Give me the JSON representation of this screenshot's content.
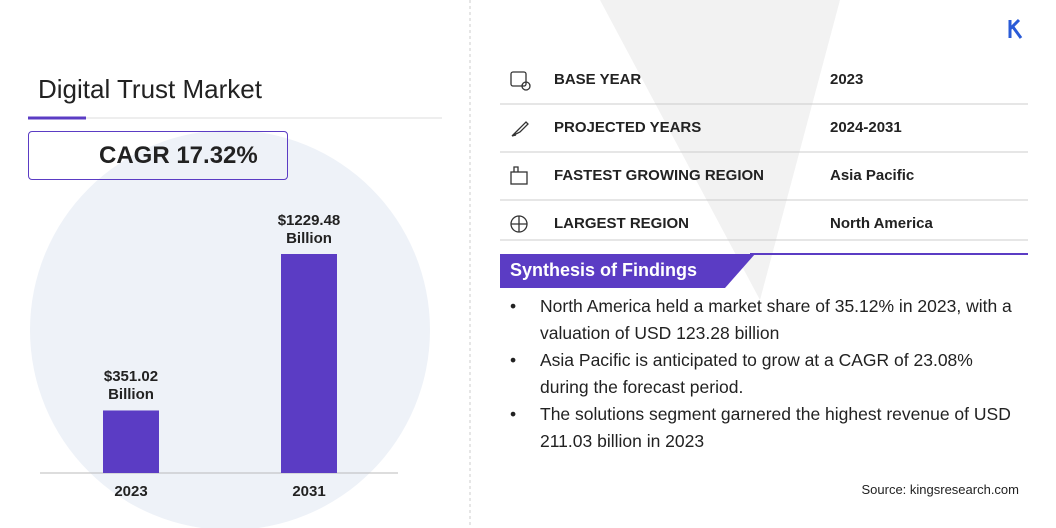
{
  "title": "Digital Trust Market",
  "cagr": "CAGR 17.32%",
  "chart_data": {
    "type": "bar",
    "categories": [
      "2023",
      "2031"
    ],
    "values": [
      351.02,
      1229.48
    ],
    "value_labels": [
      "$351.02 Billion",
      "$1229.48 Billion"
    ],
    "color": "#5b3cc4"
  },
  "stats": [
    {
      "label": "BASE YEAR",
      "value": "2023"
    },
    {
      "label": "PROJECTED YEARS",
      "value": "2024-2031"
    },
    {
      "label": "FASTEST GROWING REGION",
      "value": "Asia Pacific"
    },
    {
      "label": "LARGEST REGION",
      "value": "North America"
    }
  ],
  "findings": {
    "title": "Synthesis of Findings",
    "items": [
      "North America held a market share of 35.12% in 2023, with a valuation of USD 123.28 billion",
      "Asia Pacific is anticipated to grow at a CAGR of 23.08% during the forecast period.",
      "The solutions segment garnered the highest revenue of USD 211.03 billion in 2023"
    ]
  },
  "source": "Source: kingsresearch.com"
}
